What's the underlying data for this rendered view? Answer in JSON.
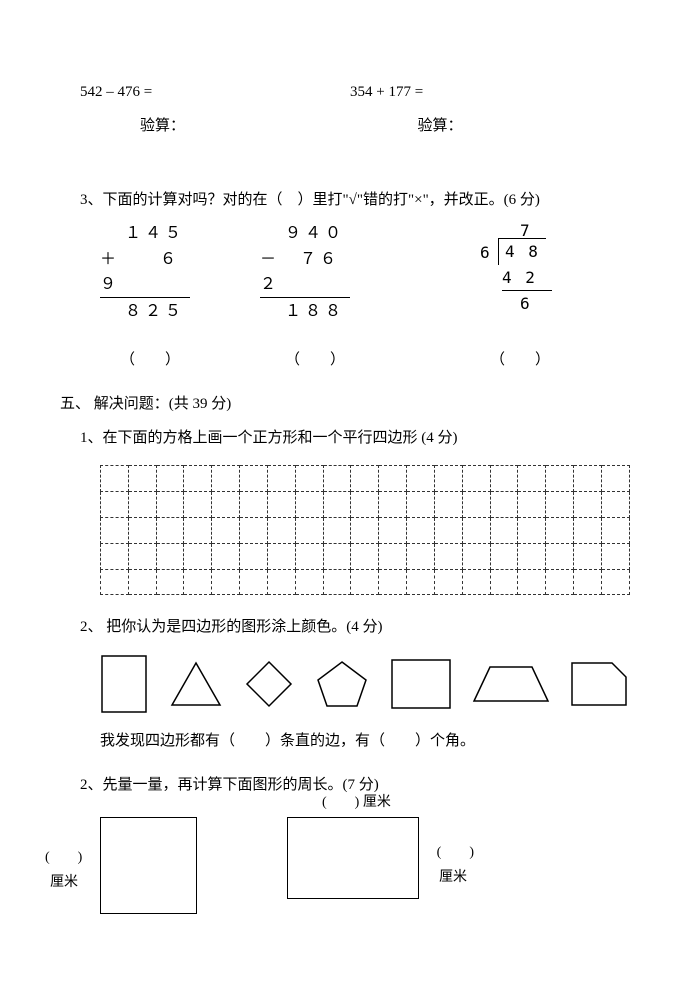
{
  "eq1": "542 – 476 =",
  "eq2": "354 + 177 =",
  "verify": "验算：",
  "q3_text": "3、下面的计算对吗？对的在（　）里打\"√\"错的打\"×\"，并改正。(6 分)",
  "calc1": {
    "l1": "１４５",
    "l2": "＋　　６９",
    "l3": "８２５"
  },
  "calc2": {
    "l1": "９４０",
    "l2": "－　７６２",
    "l3": "１８８"
  },
  "calc3": {
    "quotient": "7",
    "divisor": "6",
    "dividend": "4 8",
    "step": "4 2",
    "rem": "6"
  },
  "paren": "（　　）",
  "paren3": "（　　）",
  "section5": "五、 解决问题：(共 39 分)",
  "q51": "1、在下面的方格上画一个正方形和一个平行四边形 (4 分)",
  "q52": "2、 把你认为是四边形的图形涂上颜色。(4 分)",
  "discover": "我发现四边形都有（　　）条直的边，有（　　）个角。",
  "q53": "2、先量一量，再计算下面图形的周长。(7 分)",
  "blank_paren": "(　　)",
  "cm": "厘米",
  "top_blank_cm": "(　　) 厘米",
  "grid": {
    "rows": 5,
    "cols": 19
  },
  "colors": {
    "text": "#000000",
    "bg": "#ffffff",
    "border": "#000000",
    "dash": "#333333"
  },
  "shapes": [
    "rect",
    "triangle",
    "diamond",
    "pentagon",
    "square",
    "trapezoid",
    "cutcorner"
  ]
}
